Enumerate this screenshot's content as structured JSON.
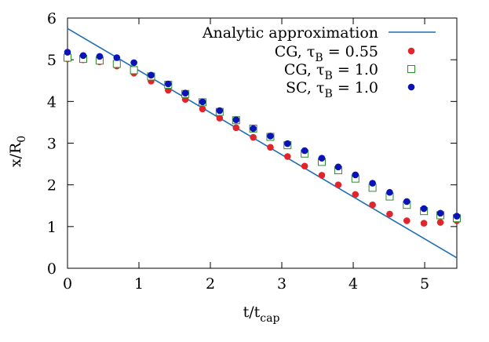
{
  "chart_data": {
    "type": "scatter",
    "xlabel": "t/t",
    "xlabel_sub": "cap",
    "ylabel": "x/R",
    "ylabel_sub": "0",
    "xlim": [
      0,
      5.45
    ],
    "ylim": [
      0,
      6
    ],
    "xticks": [
      "0",
      "1",
      "2",
      "3",
      "4",
      "5"
    ],
    "yticks": [
      "0",
      "1",
      "2",
      "3",
      "4",
      "5",
      "6"
    ],
    "grid": false,
    "legend_position": "top-right",
    "legend": [
      {
        "prefix": "Analytic approximation",
        "sub": "",
        "suffix": ""
      },
      {
        "prefix": "CG, τ",
        "sub": "B",
        "suffix": " = 0.55"
      },
      {
        "prefix": "CG, τ",
        "sub": "B",
        "suffix": " = 1.0"
      },
      {
        "prefix": "SC, τ",
        "sub": "B",
        "suffix": " = 1.0"
      }
    ],
    "line": {
      "name": "Analytic approximation",
      "color": "#1f6fb4",
      "x": [
        0,
        5.45
      ],
      "y": [
        5.75,
        0.25
      ]
    },
    "series": [
      {
        "name": "CG, τB = 0.55",
        "marker": "filled-circle",
        "color": "#e0262b",
        "x": [
          0,
          0.22,
          0.45,
          0.69,
          0.93,
          1.17,
          1.41,
          1.65,
          1.89,
          2.13,
          2.36,
          2.6,
          2.84,
          3.08,
          3.32,
          3.56,
          3.79,
          4.03,
          4.27,
          4.51,
          4.75,
          4.99,
          5.22,
          5.45
        ],
        "y": [
          5.02,
          5.0,
          4.95,
          4.85,
          4.68,
          4.49,
          4.27,
          4.05,
          3.82,
          3.6,
          3.37,
          3.14,
          2.9,
          2.68,
          2.45,
          2.23,
          2.0,
          1.77,
          1.52,
          1.3,
          1.14,
          1.08,
          1.1,
          1.14
        ]
      },
      {
        "name": "CG, τB = 1.0",
        "marker": "open-square",
        "color": "#2e8b2e",
        "x": [
          0,
          0.22,
          0.45,
          0.69,
          0.93,
          1.17,
          1.41,
          1.65,
          1.89,
          2.13,
          2.36,
          2.6,
          2.84,
          3.08,
          3.32,
          3.56,
          3.79,
          4.03,
          4.27,
          4.51,
          4.75,
          4.99,
          5.22,
          5.45
        ],
        "y": [
          5.05,
          5.02,
          4.98,
          4.9,
          4.75,
          4.6,
          4.4,
          4.18,
          3.98,
          3.75,
          3.55,
          3.35,
          3.15,
          2.95,
          2.75,
          2.55,
          2.35,
          2.15,
          1.93,
          1.72,
          1.52,
          1.37,
          1.27,
          1.2
        ]
      },
      {
        "name": "SC, τB = 1.0",
        "marker": "filled-circle",
        "color": "#0a12b8",
        "x": [
          0,
          0.22,
          0.45,
          0.69,
          0.93,
          1.17,
          1.41,
          1.65,
          1.89,
          2.13,
          2.36,
          2.6,
          2.84,
          3.08,
          3.32,
          3.56,
          3.79,
          4.03,
          4.27,
          4.51,
          4.75,
          4.99,
          5.22,
          5.45
        ],
        "y": [
          5.18,
          5.1,
          5.08,
          5.05,
          4.93,
          4.63,
          4.42,
          4.2,
          3.99,
          3.78,
          3.56,
          3.35,
          3.17,
          2.99,
          2.82,
          2.64,
          2.43,
          2.24,
          2.04,
          1.82,
          1.6,
          1.43,
          1.32,
          1.25
        ]
      }
    ]
  }
}
